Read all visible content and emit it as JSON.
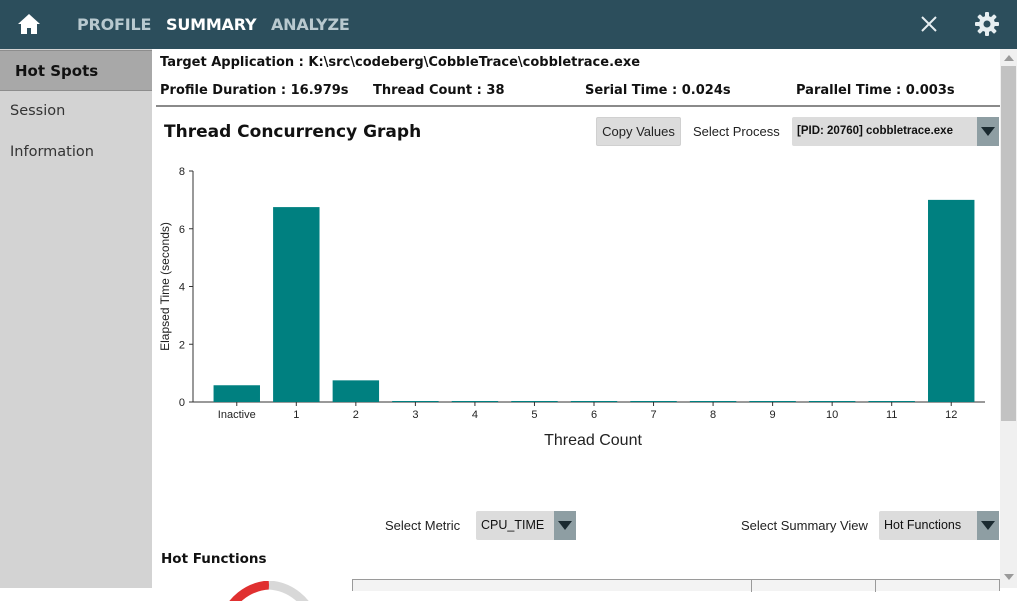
{
  "topbar": {
    "home_icon": "home-icon",
    "tabs": [
      {
        "label": "PROFILE",
        "active": false
      },
      {
        "label": "SUMMARY",
        "active": true
      },
      {
        "label": "ANALYZE",
        "active": false
      }
    ],
    "close_icon": "close-icon",
    "settings_icon": "gear-icon"
  },
  "sidebar": {
    "items": [
      {
        "label": "Hot Spots",
        "active": true
      },
      {
        "label": "Session Information",
        "active": false
      }
    ]
  },
  "info": {
    "target_application": "Target Application : K:\\src\\codeberg\\CobbleTrace\\cobbletrace.exe",
    "profile_duration": "Profile Duration : 16.979s",
    "thread_count": "Thread Count : 38",
    "serial_time": "Serial Time : 0.024s",
    "parallel_time": "Parallel Time : 0.003s"
  },
  "concurrency": {
    "title": "Thread Concurrency Graph",
    "copy_button": "Copy Values",
    "select_process_label": "Select Process",
    "selected_process": "[PID: 20760] cobbletrace.exe"
  },
  "chart_data": {
    "type": "bar",
    "categories": [
      "Inactive",
      "1",
      "2",
      "3",
      "4",
      "5",
      "6",
      "7",
      "8",
      "9",
      "10",
      "11",
      "12"
    ],
    "values": [
      0.58,
      6.75,
      0.75,
      0.02,
      0.01,
      0.02,
      0.01,
      0.02,
      0.01,
      0.01,
      0.02,
      0.02,
      7.0
    ],
    "xlabel": "Thread Count",
    "ylabel": "Elapsed Time (seconds)",
    "ylim": [
      0,
      8
    ],
    "yticks": [
      "0",
      "2",
      "4",
      "6",
      "8"
    ],
    "bar_color": "#008080",
    "grid": false
  },
  "controls": {
    "select_metric_label": "Select Metric",
    "metric_value": "CPU_TIME",
    "select_summary_label": "Select Summary View",
    "summary_value": "Hot Functions"
  },
  "hot_functions": {
    "title": "Hot Functions"
  },
  "colors": {
    "topbar": "#2c4e5c",
    "sidebar": "#d3d3d3",
    "sidebar_active": "#a8a8a8",
    "accent_bar": "#008080"
  }
}
